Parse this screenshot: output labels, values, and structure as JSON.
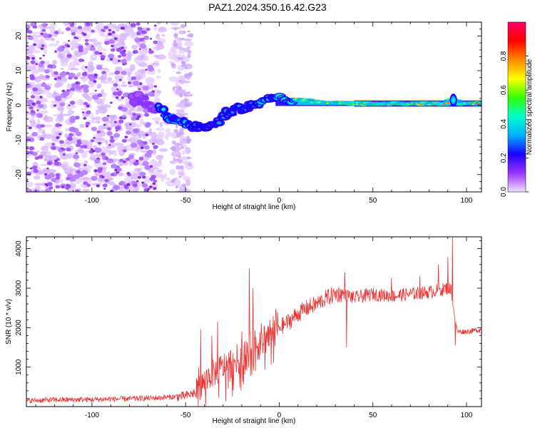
{
  "figure": {
    "title": "PAZ1.2024.350.16.42.G23"
  },
  "chart_data": [
    {
      "type": "heatmap",
      "title": "",
      "xlabel": "Height of straight line (km)",
      "ylabel": "Frequency (Hz)",
      "xlim": [
        -135,
        108
      ],
      "ylim": [
        -25,
        24
      ],
      "xticks": [
        -100,
        -50,
        0,
        50,
        100
      ],
      "yticks": [
        -20,
        -10,
        0,
        10,
        20
      ],
      "grid": false,
      "colorbar": {
        "label": "Normalized spectral amplitude",
        "range": [
          0.0,
          1.0
        ],
        "ticks": [
          0.0,
          0.2,
          0.4,
          0.6,
          0.8
        ],
        "colors": [
          "#f0e0ff",
          "#9933ff",
          "#1a00ff",
          "#00b0ff",
          "#00ffcc",
          "#33ff00",
          "#ffff00",
          "#ff8800",
          "#ff0000",
          "#ff0066"
        ]
      },
      "ridge": {
        "x": [
          -75,
          -65,
          -60,
          -55,
          -50,
          -45,
          -40,
          -35,
          -30,
          -25,
          -20,
          -15,
          -10,
          -5,
          0,
          5,
          10,
          20,
          40,
          60,
          80,
          90,
          93,
          95,
          100,
          108
        ],
        "y": [
          2,
          -1,
          -3,
          -4.5,
          -5,
          -6,
          -7,
          -6,
          -3,
          -1.5,
          -1,
          0,
          1,
          2,
          2.5,
          1,
          1.5,
          1,
          0.5,
          0.5,
          0.5,
          0.5,
          2,
          0.5,
          0.5,
          0.5
        ]
      },
      "noise_region_x": [
        -135,
        -48
      ]
    },
    {
      "type": "line",
      "title": "",
      "xlabel": "Height of straight line (km)",
      "ylabel": "SNR (10 * v/v)",
      "xlim": [
        -135,
        108
      ],
      "ylim": [
        0,
        4300
      ],
      "xticks": [
        -100,
        -50,
        0,
        50,
        100
      ],
      "yticks": [
        1000,
        2000,
        3000,
        4000
      ],
      "grid": false,
      "color": "#ee3333",
      "profile": {
        "x": [
          -135,
          -120,
          -100,
          -80,
          -65,
          -55,
          -50,
          -46,
          -42,
          -38,
          -34,
          -30,
          -26,
          -22,
          -18,
          -14,
          -10,
          -6,
          -2,
          0,
          5,
          10,
          15,
          20,
          25,
          30,
          35,
          40,
          50,
          60,
          70,
          80,
          85,
          90,
          92,
          93,
          95,
          100,
          108
        ],
        "y": [
          150,
          170,
          180,
          200,
          220,
          250,
          270,
          330,
          500,
          750,
          880,
          1000,
          1100,
          1200,
          1350,
          1500,
          1650,
          1800,
          1950,
          2000,
          2150,
          2350,
          2500,
          2600,
          2750,
          2850,
          2850,
          2750,
          2850,
          2800,
          2850,
          2900,
          2950,
          3000,
          2950,
          2500,
          1900,
          1900,
          1950
        ]
      },
      "spikes": [
        {
          "x": -43,
          "y": 1000
        },
        {
          "x": -42,
          "y": 1950
        },
        {
          "x": -36,
          "y": 1800
        },
        {
          "x": -33,
          "y": 2150
        },
        {
          "x": -20,
          "y": 1900
        },
        {
          "x": -16,
          "y": 3500
        },
        {
          "x": -14,
          "y": 3000
        },
        {
          "x": -2,
          "y": 2450
        },
        {
          "x": 35,
          "y": 3400
        },
        {
          "x": 36,
          "y": 1500
        },
        {
          "x": 60,
          "y": 3250
        },
        {
          "x": 75,
          "y": 3300
        },
        {
          "x": 85,
          "y": 3600
        },
        {
          "x": 90,
          "y": 3800
        },
        {
          "x": 92.5,
          "y": 4300
        },
        {
          "x": 94,
          "y": 1550
        }
      ]
    }
  ]
}
